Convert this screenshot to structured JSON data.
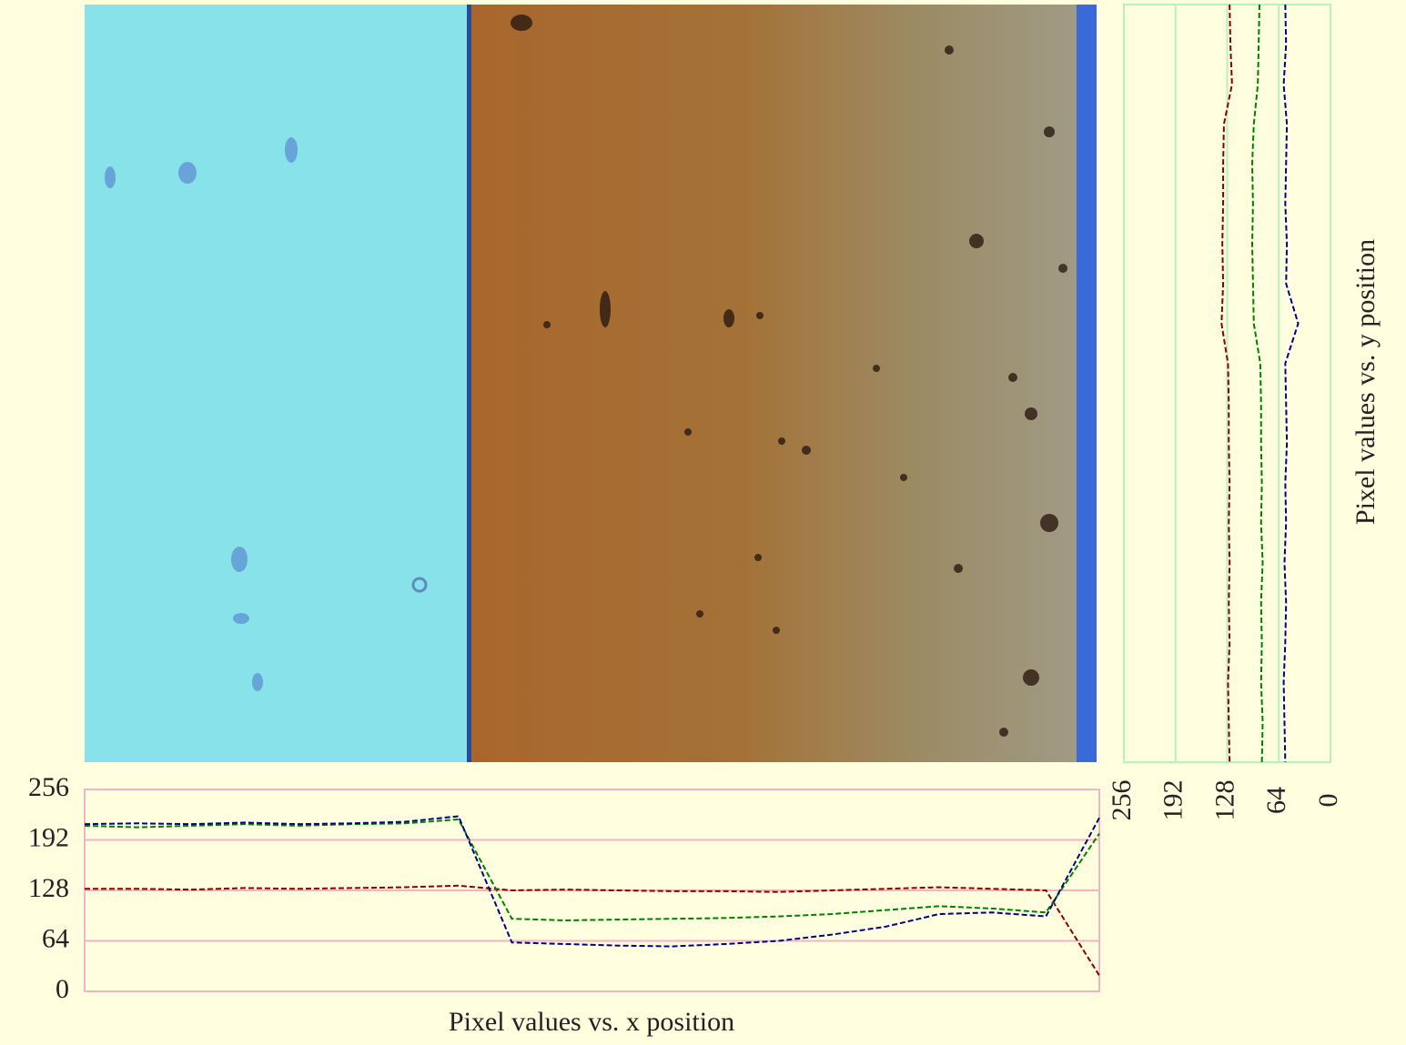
{
  "chart_data": [
    {
      "type": "line",
      "orientation": "horizontal",
      "title": "Pixel values vs. x position",
      "categories": [
        null,
        null,
        null,
        null,
        null,
        null,
        null,
        null,
        null,
        null,
        null,
        null,
        null,
        null,
        null,
        null,
        null,
        null,
        null,
        null
      ],
      "series": [
        {
          "color": "#8b0000",
          "values": [
            130,
            130,
            129,
            131,
            130,
            131,
            132,
            134,
            128,
            129,
            128,
            127,
            127,
            126,
            128,
            130,
            132,
            130,
            128,
            20
          ]
        },
        {
          "color": "#008000",
          "values": [
            210,
            208,
            210,
            212,
            210,
            212,
            213,
            218,
            92,
            90,
            91,
            92,
            93,
            95,
            98,
            103,
            108,
            105,
            100,
            200
          ]
        },
        {
          "color": "#00008b",
          "values": [
            212,
            213,
            212,
            214,
            212,
            213,
            215,
            222,
            62,
            60,
            58,
            57,
            60,
            64,
            72,
            82,
            98,
            100,
            95,
            220
          ]
        }
      ],
      "ylim": [
        0,
        256
      ],
      "yticks": [
        0,
        64,
        128,
        192,
        256
      ],
      "grid": true,
      "grid_color": "#f4b4c0"
    },
    {
      "type": "line",
      "orientation": "vertical",
      "title": "Pixel values vs. y position",
      "categories": [
        null,
        null,
        null,
        null,
        null,
        null,
        null,
        null,
        null,
        null,
        null,
        null,
        null,
        null,
        null,
        null,
        null,
        null,
        null,
        null
      ],
      "series": [
        {
          "color": "#8b0000",
          "values": [
            125,
            124,
            122,
            132,
            133,
            133,
            134,
            133,
            135,
            127,
            126,
            126,
            125,
            126,
            125,
            126,
            125,
            127,
            126,
            125
          ]
        },
        {
          "color": "#008000",
          "values": [
            88,
            89,
            90,
            95,
            97,
            96,
            97,
            96,
            95,
            87,
            86,
            86,
            85,
            86,
            84,
            86,
            85,
            86,
            84,
            85
          ]
        },
        {
          "color": "#00008b",
          "values": [
            56,
            55,
            58,
            54,
            55,
            56,
            54,
            55,
            40,
            56,
            55,
            54,
            56,
            55,
            57,
            55,
            56,
            58,
            57,
            56
          ]
        }
      ],
      "xlim": [
        256,
        0
      ],
      "xticks": [
        256,
        192,
        128,
        64,
        0
      ],
      "grid": true,
      "grid_color": "#b8f0c0"
    }
  ]
}
